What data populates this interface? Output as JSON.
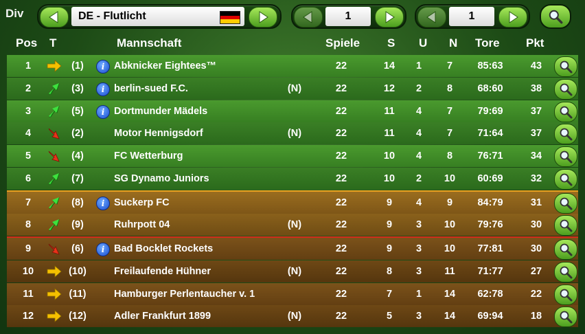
{
  "topbar": {
    "div_label": "Div",
    "league_name": "DE - Flutlicht",
    "page_one": "1",
    "page_two": "1",
    "colors": {
      "flag": [
        "#000000",
        "#dd0000",
        "#ffcc00"
      ]
    }
  },
  "header": {
    "pos": "Pos",
    "t": "T",
    "team": "Mannschaft",
    "games": "Spiele",
    "s": "S",
    "u": "U",
    "n": "N",
    "goals": "Tore",
    "pts": "Pkt"
  },
  "rows": [
    {
      "pos": "1",
      "trend": "right",
      "prev": "(1)",
      "info": true,
      "team": "Abknicker Eightees™",
      "new": "",
      "games": "22",
      "s": "14",
      "u": "1",
      "n": "7",
      "goals": "85:63",
      "pts": "43",
      "zone": "g"
    },
    {
      "pos": "2",
      "trend": "up",
      "prev": "(3)",
      "info": true,
      "team": "berlin-sued F.C.",
      "new": "(N)",
      "games": "22",
      "s": "12",
      "u": "2",
      "n": "8",
      "goals": "68:60",
      "pts": "38",
      "zone": "g"
    },
    {
      "pos": "3",
      "trend": "up",
      "prev": "(5)",
      "info": true,
      "team": "Dortmunder Mädels",
      "new": "",
      "games": "22",
      "s": "11",
      "u": "4",
      "n": "7",
      "goals": "79:69",
      "pts": "37",
      "zone": "g"
    },
    {
      "pos": "4",
      "trend": "down",
      "prev": "(2)",
      "info": false,
      "team": "Motor Hennigsdorf",
      "new": "(N)",
      "games": "22",
      "s": "11",
      "u": "4",
      "n": "7",
      "goals": "71:64",
      "pts": "37",
      "zone": "g"
    },
    {
      "pos": "5",
      "trend": "down",
      "prev": "(4)",
      "info": false,
      "team": "FC Wetterburg",
      "new": "",
      "games": "22",
      "s": "10",
      "u": "4",
      "n": "8",
      "goals": "76:71",
      "pts": "34",
      "zone": "g"
    },
    {
      "pos": "6",
      "trend": "up",
      "prev": "(7)",
      "info": false,
      "team": "SG Dynamo Juniors",
      "new": "",
      "games": "22",
      "s": "10",
      "u": "2",
      "n": "10",
      "goals": "60:69",
      "pts": "32",
      "zone": "g"
    },
    {
      "pos": "7",
      "trend": "up",
      "prev": "(8)",
      "info": true,
      "team": "Suckerp FC",
      "new": "",
      "games": "22",
      "s": "9",
      "u": "4",
      "n": "9",
      "goals": "84:79",
      "pts": "31",
      "zone": "o"
    },
    {
      "pos": "8",
      "trend": "up",
      "prev": "(9)",
      "info": false,
      "team": "Ruhrpott 04",
      "new": "(N)",
      "games": "22",
      "s": "9",
      "u": "3",
      "n": "10",
      "goals": "79:76",
      "pts": "30",
      "zone": "o"
    },
    {
      "pos": "9",
      "trend": "down",
      "prev": "(6)",
      "info": true,
      "team": "Bad Bocklet Rockets",
      "new": "",
      "games": "22",
      "s": "9",
      "u": "3",
      "n": "10",
      "goals": "77:81",
      "pts": "30",
      "zone": "b"
    },
    {
      "pos": "10",
      "trend": "right",
      "prev": "(10)",
      "info": false,
      "team": "Freilaufende Hühner",
      "new": "(N)",
      "games": "22",
      "s": "8",
      "u": "3",
      "n": "11",
      "goals": "71:77",
      "pts": "27",
      "zone": "b"
    },
    {
      "pos": "11",
      "trend": "right",
      "prev": "(11)",
      "info": false,
      "team": "Hamburger Perlentaucher v. 1",
      "new": "",
      "games": "22",
      "s": "7",
      "u": "1",
      "n": "14",
      "goals": "62:78",
      "pts": "22",
      "zone": "b"
    },
    {
      "pos": "12",
      "trend": "right",
      "prev": "(12)",
      "info": false,
      "team": "Adler Frankfurt 1899",
      "new": "(N)",
      "games": "22",
      "s": "5",
      "u": "3",
      "n": "14",
      "goals": "69:94",
      "pts": "18",
      "zone": "b"
    }
  ]
}
